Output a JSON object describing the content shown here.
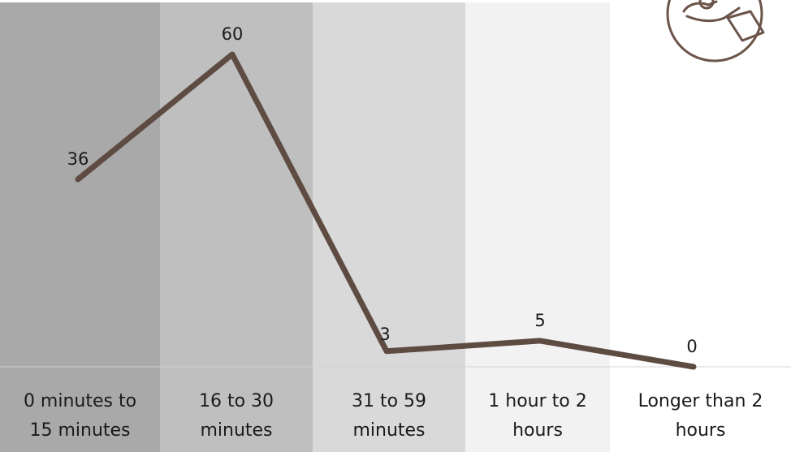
{
  "chart_data": {
    "type": "line",
    "categories": [
      "0 minutes to 15 minutes",
      "16 to 30 minutes",
      "31 to 59 minutes",
      "1 hour to 2 hours",
      "Longer than 2 hours"
    ],
    "category_lines": [
      [
        "0 minutes to",
        "15 minutes"
      ],
      [
        "16 to 30",
        "minutes"
      ],
      [
        "31 to 59",
        "minutes"
      ],
      [
        "1 hour to 2",
        "hours"
      ],
      [
        "Longer than 2",
        "hours"
      ]
    ],
    "values": [
      36,
      60,
      3,
      5,
      0
    ],
    "data_labels": [
      "36",
      "60",
      "3",
      "5",
      "0"
    ],
    "title": "",
    "xlabel": "",
    "ylabel": "",
    "ylim": [
      0,
      60
    ],
    "grid": false,
    "legend": "none"
  },
  "colors": {
    "line": "#5e4b42",
    "bands": [
      "#a9a9a9",
      "#bfbfbf",
      "#d9d9d9",
      "#f2f2f2",
      "#ffffff"
    ],
    "icon": "#6b5449"
  },
  "icon": {
    "name": "hand-holding-icon"
  }
}
